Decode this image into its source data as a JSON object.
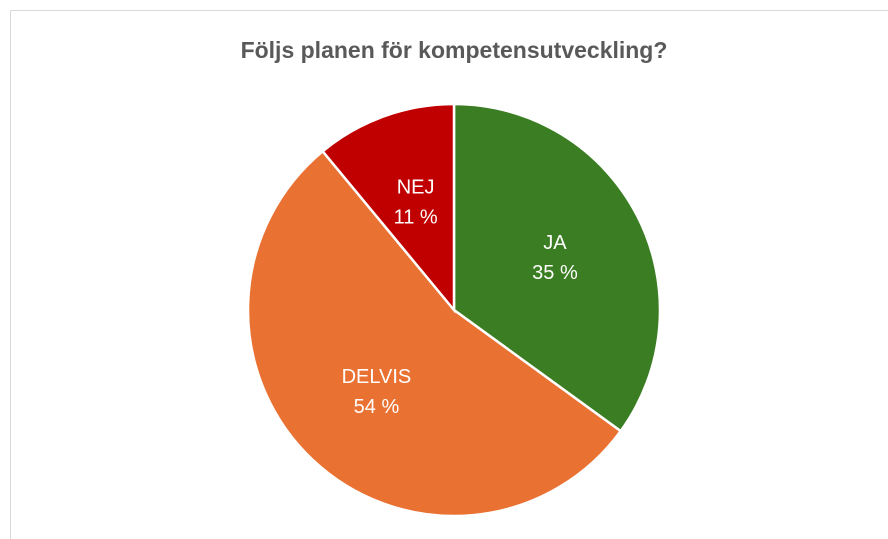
{
  "chart_data": {
    "type": "pie",
    "title": "Följs planen för kompetensutveckling?",
    "categories": [
      "JA",
      "DELVIS",
      "NEJ"
    ],
    "values": [
      35,
      54,
      11
    ],
    "value_labels": [
      "35 %",
      "54 %",
      "11 %"
    ],
    "colors": [
      "#3a7d22",
      "#e97132",
      "#c00000"
    ]
  }
}
